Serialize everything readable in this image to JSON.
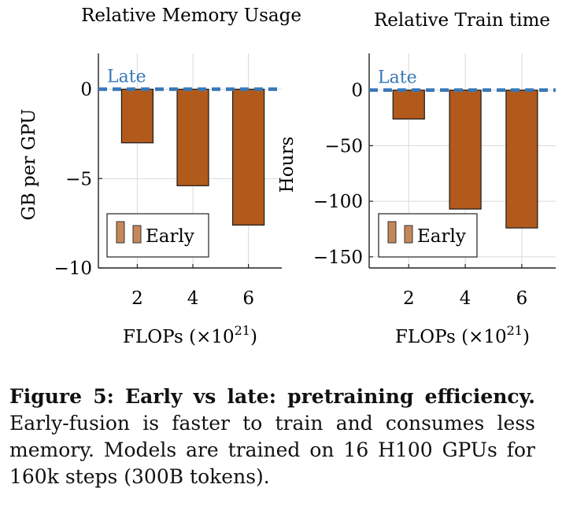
{
  "chart_data": [
    {
      "type": "bar",
      "title": "Relative Memory Usage",
      "xlabel": "FLOPs (×10",
      "xlabel_exponent": "21",
      "xlabel_close": ")",
      "ylabel": "GB per GPU",
      "categories": [
        "2",
        "4",
        "6"
      ],
      "x": [
        2,
        4,
        6
      ],
      "series": [
        {
          "name": "Early",
          "color": "#b15a1b",
          "values": [
            -3.0,
            -5.4,
            -7.6
          ]
        }
      ],
      "reference_line": {
        "name": "Late",
        "y": 0,
        "color": "#3777b7"
      },
      "xlim": [
        0.6,
        7.2
      ],
      "ylim": [
        -10,
        2
      ],
      "yticks": [
        0,
        -5,
        -10
      ],
      "ytick_labels": [
        "0",
        "−5",
        "−10"
      ],
      "grid": true,
      "legend": "bottom-left"
    },
    {
      "type": "bar",
      "title": "Relative Train time",
      "xlabel": "FLOPs (×10",
      "xlabel_exponent": "21",
      "xlabel_close": ")",
      "ylabel": "Hours",
      "categories": [
        "2",
        "4",
        "6"
      ],
      "x": [
        2,
        4,
        6
      ],
      "series": [
        {
          "name": "Early",
          "color": "#b15a1b",
          "values": [
            -26,
            -107,
            -124
          ]
        }
      ],
      "reference_line": {
        "name": "Late",
        "y": 0,
        "color": "#3777b7"
      },
      "xlim": [
        0.6,
        7.2
      ],
      "ylim": [
        -160,
        33
      ],
      "yticks": [
        0,
        -50,
        -100,
        -150
      ],
      "ytick_labels": [
        "0",
        "−50",
        "−100",
        "−150"
      ],
      "grid": true,
      "legend": "bottom-left"
    }
  ],
  "caption": {
    "label": "Figure 5: Early vs late: pretraining efficiency.",
    "text": "Early-fusion is faster to train and consumes less memory. Models are trained on 16 H100 GPUs for 160k steps (300B tokens)."
  }
}
